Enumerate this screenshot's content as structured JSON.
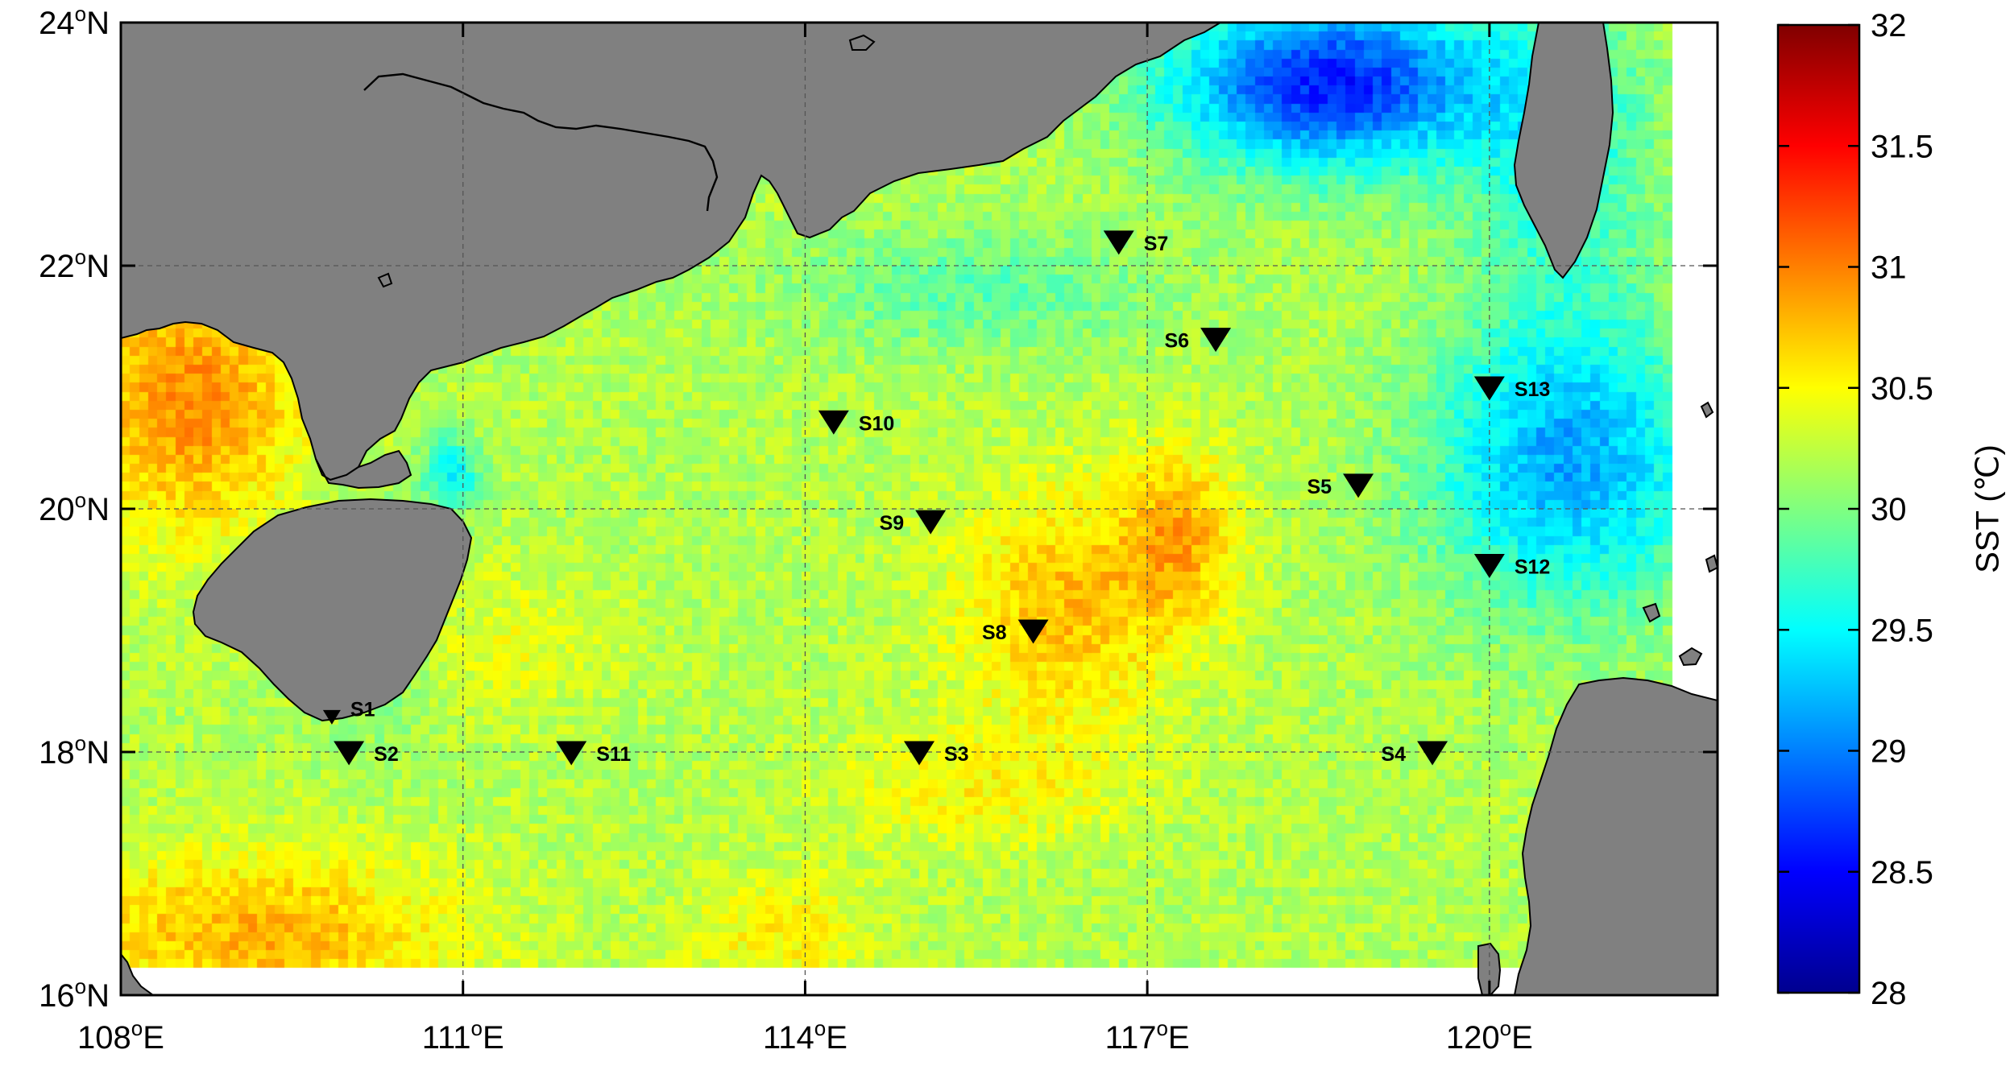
{
  "map": {
    "lon_range": [
      108,
      122
    ],
    "lat_range": [
      16,
      24
    ],
    "x_ticks": [
      {
        "value": 108,
        "deg": "108",
        "hemi": "E"
      },
      {
        "value": 111,
        "deg": "111",
        "hemi": "E"
      },
      {
        "value": 114,
        "deg": "114",
        "hemi": "E"
      },
      {
        "value": 117,
        "deg": "117",
        "hemi": "E"
      },
      {
        "value": 120,
        "deg": "120",
        "hemi": "E"
      }
    ],
    "y_ticks": [
      {
        "value": 24,
        "deg": "24",
        "hemi": "N"
      },
      {
        "value": 22,
        "deg": "22",
        "hemi": "N"
      },
      {
        "value": 20,
        "deg": "20",
        "hemi": "N"
      },
      {
        "value": 18,
        "deg": "18",
        "hemi": "N"
      },
      {
        "value": 16,
        "deg": "16",
        "hemi": "N"
      }
    ],
    "degree_mark": "o",
    "land_color": "#808080"
  },
  "colorbar": {
    "label": "SST (℃)",
    "range": [
      28,
      32
    ],
    "ticks": [
      "28",
      "28.5",
      "29",
      "29.5",
      "30",
      "30.5",
      "31",
      "31.5",
      "32"
    ],
    "colormap": "jet"
  },
  "stations": [
    {
      "name": "S1",
      "lon": 109.85,
      "lat": 18.28,
      "small": true
    },
    {
      "name": "S2",
      "lon": 110.0,
      "lat": 17.98
    },
    {
      "name": "S3",
      "lon": 115.0,
      "lat": 17.98
    },
    {
      "name": "S4",
      "lon": 119.5,
      "lat": 17.98
    },
    {
      "name": "S5",
      "lon": 118.85,
      "lat": 20.18
    },
    {
      "name": "S6",
      "lon": 117.6,
      "lat": 21.38
    },
    {
      "name": "S7",
      "lon": 116.75,
      "lat": 22.18
    },
    {
      "name": "S8",
      "lon": 116.0,
      "lat": 18.98
    },
    {
      "name": "S9",
      "lon": 115.1,
      "lat": 19.88
    },
    {
      "name": "S10",
      "lon": 114.25,
      "lat": 20.7
    },
    {
      "name": "S11",
      "lon": 111.95,
      "lat": 17.98
    },
    {
      "name": "S12",
      "lon": 120.0,
      "lat": 19.52
    },
    {
      "name": "S13",
      "lon": 120.0,
      "lat": 20.98
    }
  ]
}
